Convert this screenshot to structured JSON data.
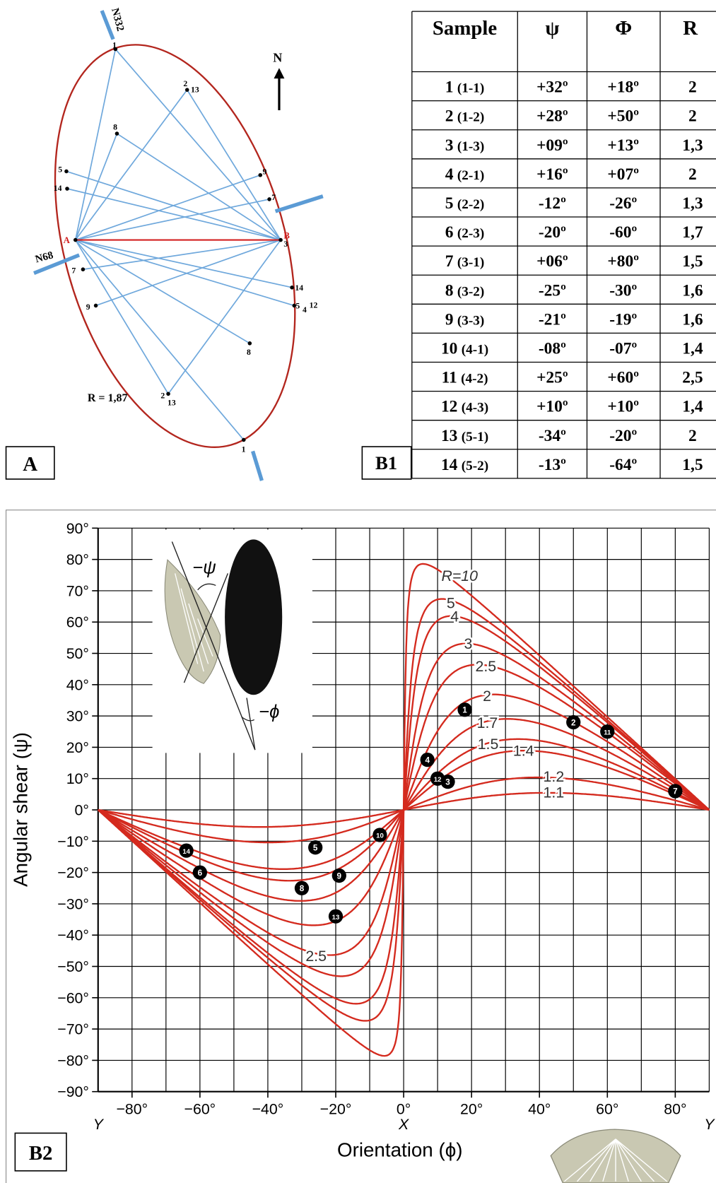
{
  "panel_a": {
    "label": "A",
    "north": "N",
    "strikes": [
      "N332",
      "N68"
    ],
    "ends": [
      "A",
      "B"
    ],
    "ratio": "R = 1,87",
    "point_labels": [
      "1",
      "2",
      "13",
      "8",
      "5",
      "14",
      "9",
      "7",
      "3",
      "7",
      "9",
      "14",
      "5",
      "4",
      "12",
      "8",
      "2",
      "13",
      "1"
    ]
  },
  "table": {
    "label": "B1",
    "header": [
      "Sample",
      "ψ",
      "Φ",
      "R"
    ],
    "rows": [
      [
        "1",
        "(1-1)",
        "+32º",
        "+18º",
        "2"
      ],
      [
        "2",
        "(1-2)",
        "+28º",
        "+50º",
        "2"
      ],
      [
        "3",
        "(1-3)",
        "+09º",
        "+13º",
        "1,3"
      ],
      [
        "4",
        "(2-1)",
        "+16º",
        "+07º",
        "2"
      ],
      [
        "5",
        "(2-2)",
        "-12º",
        "-26º",
        "1,3"
      ],
      [
        "6",
        "(2-3)",
        "-20º",
        "-60º",
        "1,7"
      ],
      [
        "7",
        "(3-1)",
        "+06º",
        "+80º",
        "1,5"
      ],
      [
        "8",
        "(3-2)",
        "-25º",
        "-30º",
        "1,6"
      ],
      [
        "9",
        "(3-3)",
        "-21º",
        "-19º",
        "1,6"
      ],
      [
        "10",
        "(4-1)",
        "-08º",
        "-07º",
        "1,4"
      ],
      [
        "11",
        "(4-2)",
        "+25º",
        "+60º",
        "2,5"
      ],
      [
        "12",
        "(4-3)",
        "+10º",
        "+10º",
        "1,4"
      ],
      [
        "13",
        "(5-1)",
        "-34º",
        "-20º",
        "2"
      ],
      [
        "14",
        "(5-2)",
        "-13º",
        "-64º",
        "1,5"
      ]
    ]
  },
  "chart_data": {
    "type": "scatter",
    "panel_label": "B2",
    "xlabel": "Orientation (ϕ)",
    "ylabel": "Angular shear (ψ)",
    "xlim": [
      -90,
      90
    ],
    "ylim": [
      -90,
      90
    ],
    "xticks": [
      {
        "value": -80,
        "label": "−80°"
      },
      {
        "value": -60,
        "label": "−60°"
      },
      {
        "value": -40,
        "label": "−40°"
      },
      {
        "value": -20,
        "label": "−20°"
      },
      {
        "value": 0,
        "label": "0°"
      },
      {
        "value": 20,
        "label": "20°"
      },
      {
        "value": 40,
        "label": "40°"
      },
      {
        "value": 60,
        "label": "60°"
      },
      {
        "value": 80,
        "label": "80°"
      }
    ],
    "yticks": [
      {
        "value": 90,
        "label": "90°"
      },
      {
        "value": 80,
        "label": "80°"
      },
      {
        "value": 70,
        "label": "70°"
      },
      {
        "value": 60,
        "label": "60°"
      },
      {
        "value": 50,
        "label": "50°"
      },
      {
        "value": 40,
        "label": "40°"
      },
      {
        "value": 30,
        "label": "30°"
      },
      {
        "value": 20,
        "label": "20°"
      },
      {
        "value": 10,
        "label": "10°"
      },
      {
        "value": 0,
        "label": "0°"
      },
      {
        "value": -10,
        "label": "−10°"
      },
      {
        "value": -20,
        "label": "−20°"
      },
      {
        "value": -30,
        "label": "−30°"
      },
      {
        "value": -40,
        "label": "−40°"
      },
      {
        "value": -50,
        "label": "−50°"
      },
      {
        "value": -60,
        "label": "−60°"
      },
      {
        "value": -70,
        "label": "−70°"
      },
      {
        "value": -80,
        "label": "−80°"
      },
      {
        "value": -90,
        "label": "−90°"
      }
    ],
    "x_grid": [
      -90,
      -80,
      -70,
      -60,
      -50,
      -40,
      -30,
      -20,
      -10,
      0,
      10,
      20,
      30,
      40,
      50,
      60,
      70,
      80,
      90
    ],
    "grid": true,
    "axis_letters": [
      {
        "value": -90,
        "label": "Y"
      },
      {
        "value": 0,
        "label": "X"
      },
      {
        "value": 90,
        "label": "Y"
      }
    ],
    "inset_labels": [
      "−ψ",
      "−ϕ"
    ],
    "color": "#d42a1e",
    "series": [
      {
        "name": "R=10",
        "r": 10
      },
      {
        "name": "5",
        "r": 5
      },
      {
        "name": "4",
        "r": 4
      },
      {
        "name": "3",
        "r": 3
      },
      {
        "name": "2.5",
        "r": 2.5
      },
      {
        "name": "2",
        "r": 2
      },
      {
        "name": "1.7",
        "r": 1.7
      },
      {
        "name": "1.5",
        "r": 1.5
      },
      {
        "name": "1.4",
        "r": 1.4
      },
      {
        "name": "1.2",
        "r": 1.2
      },
      {
        "name": "1.1",
        "r": 1.1
      }
    ],
    "annotations": [
      "2.5"
    ],
    "points": {
      "labels": [
        "1",
        "2",
        "3",
        "4",
        "5",
        "6",
        "7",
        "8",
        "9",
        "10",
        "11",
        "12",
        "13",
        "14"
      ],
      "x": [
        18,
        50,
        13,
        7,
        -26,
        -60,
        80,
        -30,
        -19,
        -7,
        60,
        10,
        -20,
        -64
      ],
      "y": [
        32,
        28,
        9,
        16,
        -12,
        -20,
        6,
        -25,
        -21,
        -8,
        25,
        10,
        -34,
        -13
      ]
    }
  }
}
